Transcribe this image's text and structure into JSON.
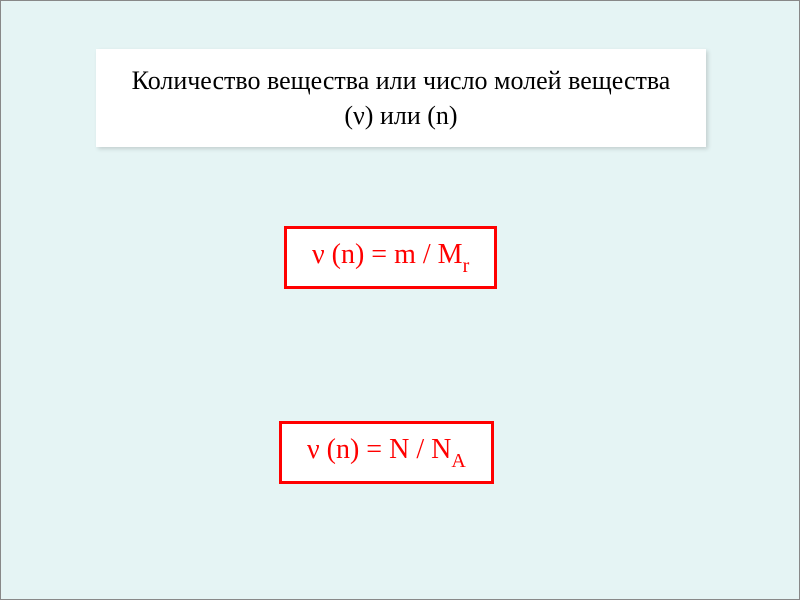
{
  "background_color": "#e5f4f4",
  "title": {
    "text": "Количество вещества или число молей вещества (ν) или (n)",
    "fontsize": 26,
    "color": "#000000",
    "background": "#ffffff"
  },
  "formulas": [
    {
      "prefix": "ν (n) =  m / M",
      "subscript": "r",
      "border_color": "#ff0000",
      "text_color": "#ff0000",
      "background": "#ffffff",
      "fontsize": 28,
      "border_width": 3
    },
    {
      "prefix": "ν (n) = N / N",
      "subscript": "A",
      "border_color": "#ff0000",
      "text_color": "#ff0000",
      "background": "#ffffff",
      "fontsize": 28,
      "border_width": 3
    }
  ]
}
